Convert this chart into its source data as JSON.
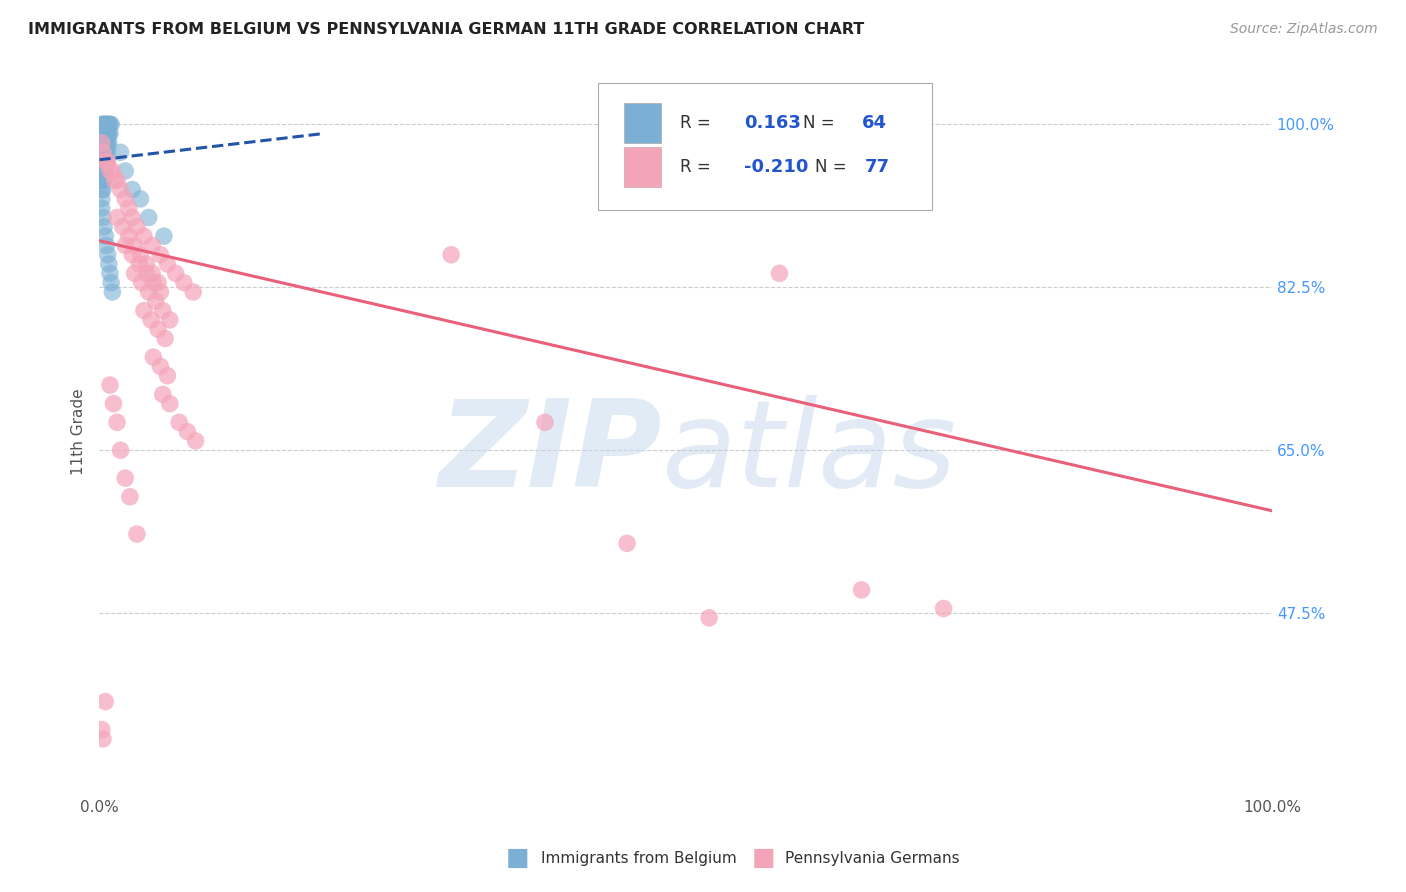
{
  "title": "IMMIGRANTS FROM BELGIUM VS PENNSYLVANIA GERMAN 11TH GRADE CORRELATION CHART",
  "source": "Source: ZipAtlas.com",
  "ylabel": "11th Grade",
  "legend_blue_r_val": "0.163",
  "legend_blue_n_val": "64",
  "legend_pink_r_val": "-0.210",
  "legend_pink_n_val": "77",
  "legend1_label": "Immigrants from Belgium",
  "legend2_label": "Pennsylvania Germans",
  "ytick_labels": [
    "100.0%",
    "82.5%",
    "65.0%",
    "47.5%"
  ],
  "ytick_values": [
    1.0,
    0.825,
    0.65,
    0.475
  ],
  "xlim": [
    0.0,
    1.0
  ],
  "ylim": [
    0.28,
    1.06
  ],
  "blue_color": "#7bafd4",
  "pink_color": "#f4a4b8",
  "blue_line_color": "#2255aa",
  "pink_line_color": "#e8607a",
  "grid_color": "#cccccc",
  "background_color": "#ffffff",
  "title_color": "#222222",
  "source_color": "#999999",
  "axis_label_color": "#555555",
  "right_tick_color": "#4499ff",
  "blue_scatter_x": [
    0.002,
    0.003,
    0.004,
    0.005,
    0.006,
    0.007,
    0.008,
    0.009,
    0.01,
    0.002,
    0.003,
    0.004,
    0.005,
    0.006,
    0.007,
    0.008,
    0.009,
    0.002,
    0.003,
    0.004,
    0.005,
    0.006,
    0.007,
    0.008,
    0.002,
    0.003,
    0.004,
    0.005,
    0.006,
    0.007,
    0.002,
    0.003,
    0.004,
    0.005,
    0.006,
    0.002,
    0.003,
    0.004,
    0.005,
    0.002,
    0.003,
    0.004,
    0.002,
    0.003,
    0.002,
    0.018,
    0.022,
    0.028,
    0.035,
    0.042,
    0.055,
    0.002,
    0.003,
    0.004,
    0.005,
    0.006,
    0.007,
    0.008,
    0.009,
    0.01,
    0.011
  ],
  "blue_scatter_y": [
    1.0,
    1.0,
    1.0,
    1.0,
    1.0,
    1.0,
    1.0,
    1.0,
    1.0,
    0.99,
    0.99,
    0.99,
    0.99,
    0.99,
    0.99,
    0.99,
    0.99,
    0.98,
    0.98,
    0.98,
    0.98,
    0.98,
    0.98,
    0.98,
    0.97,
    0.97,
    0.97,
    0.97,
    0.97,
    0.97,
    0.96,
    0.96,
    0.96,
    0.96,
    0.96,
    0.95,
    0.95,
    0.95,
    0.95,
    0.94,
    0.94,
    0.94,
    0.93,
    0.93,
    0.92,
    0.97,
    0.95,
    0.93,
    0.92,
    0.9,
    0.88,
    0.91,
    0.9,
    0.89,
    0.88,
    0.87,
    0.86,
    0.85,
    0.84,
    0.83,
    0.82
  ],
  "pink_scatter_x": [
    0.002,
    0.003,
    0.005,
    0.007,
    0.009,
    0.011,
    0.013,
    0.015,
    0.018,
    0.022,
    0.025,
    0.028,
    0.032,
    0.038,
    0.045,
    0.052,
    0.058,
    0.065,
    0.072,
    0.08,
    0.015,
    0.02,
    0.025,
    0.03,
    0.035,
    0.04,
    0.045,
    0.05,
    0.022,
    0.028,
    0.034,
    0.04,
    0.046,
    0.052,
    0.03,
    0.036,
    0.042,
    0.048,
    0.054,
    0.06,
    0.038,
    0.044,
    0.05,
    0.056,
    0.046,
    0.052,
    0.058,
    0.054,
    0.06,
    0.068,
    0.075,
    0.082,
    0.3,
    0.38,
    0.45,
    0.52,
    0.58,
    0.65,
    0.72,
    0.002,
    0.003,
    0.005,
    0.009,
    0.012,
    0.015,
    0.018,
    0.022,
    0.026,
    0.032
  ],
  "pink_scatter_y": [
    0.98,
    0.97,
    0.96,
    0.96,
    0.95,
    0.95,
    0.94,
    0.94,
    0.93,
    0.92,
    0.91,
    0.9,
    0.89,
    0.88,
    0.87,
    0.86,
    0.85,
    0.84,
    0.83,
    0.82,
    0.9,
    0.89,
    0.88,
    0.87,
    0.86,
    0.85,
    0.84,
    0.83,
    0.87,
    0.86,
    0.85,
    0.84,
    0.83,
    0.82,
    0.84,
    0.83,
    0.82,
    0.81,
    0.8,
    0.79,
    0.8,
    0.79,
    0.78,
    0.77,
    0.75,
    0.74,
    0.73,
    0.71,
    0.7,
    0.68,
    0.67,
    0.66,
    0.86,
    0.68,
    0.55,
    0.47,
    0.84,
    0.5,
    0.48,
    0.35,
    0.34,
    0.38,
    0.72,
    0.7,
    0.68,
    0.65,
    0.62,
    0.6,
    0.56
  ],
  "blue_trendline_x": [
    0.0,
    0.19
  ],
  "blue_trendline_y": [
    0.962,
    0.99
  ],
  "pink_trendline_x": [
    0.0,
    1.0
  ],
  "pink_trendline_y": [
    0.875,
    0.585
  ]
}
